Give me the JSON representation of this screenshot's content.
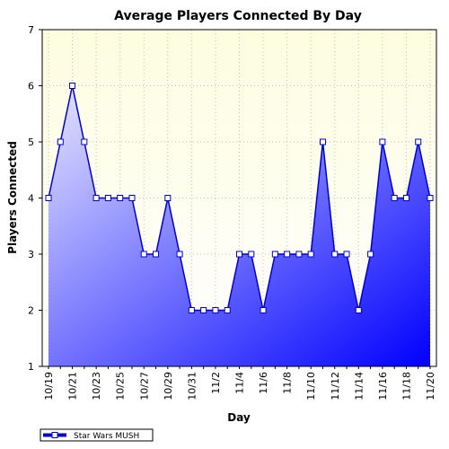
{
  "chart_data": {
    "type": "area",
    "title": "Average Players Connected By Day",
    "xlabel": "Day",
    "ylabel": "Players Connected",
    "ylim": [
      1,
      7
    ],
    "yticks": [
      "1",
      "2",
      "3",
      "4",
      "5",
      "6",
      "7"
    ],
    "x": [
      "10/19",
      "10/20",
      "10/21",
      "10/22",
      "10/23",
      "10/24",
      "10/25",
      "10/26",
      "10/27",
      "10/28",
      "10/29",
      "10/30",
      "10/31",
      "11/1",
      "11/2",
      "11/3",
      "11/4",
      "11/5",
      "11/6",
      "11/7",
      "11/8",
      "11/9",
      "11/10",
      "11/11",
      "11/12",
      "11/13",
      "11/14",
      "11/15",
      "11/16",
      "11/17",
      "11/18",
      "11/19",
      "11/20"
    ],
    "xtick_labels": [
      "10/19",
      "10/21",
      "10/23",
      "10/25",
      "10/27",
      "10/29",
      "10/31",
      "11/2",
      "11/4",
      "11/6",
      "11/8",
      "11/10",
      "11/12",
      "11/14",
      "11/16",
      "11/18",
      "11/20"
    ],
    "series": [
      {
        "name": "Star Wars MUSH",
        "values": [
          4,
          5,
          6,
          5,
          4,
          4,
          4,
          4,
          3,
          3,
          4,
          3,
          2,
          2,
          2,
          2,
          3,
          3,
          2,
          3,
          3,
          3,
          3,
          5,
          3,
          3,
          2,
          3,
          5,
          4,
          4,
          5,
          4
        ]
      }
    ],
    "grid": true,
    "legend": "bottom-left",
    "colors": {
      "line": "#0000cc",
      "fill_start": "#e6e6ff",
      "fill_end": "#0000ff",
      "plot_bg_top": "#fdfde0",
      "plot_bg_bottom": "#ffffff",
      "marker_fill": "#ffffff"
    }
  }
}
